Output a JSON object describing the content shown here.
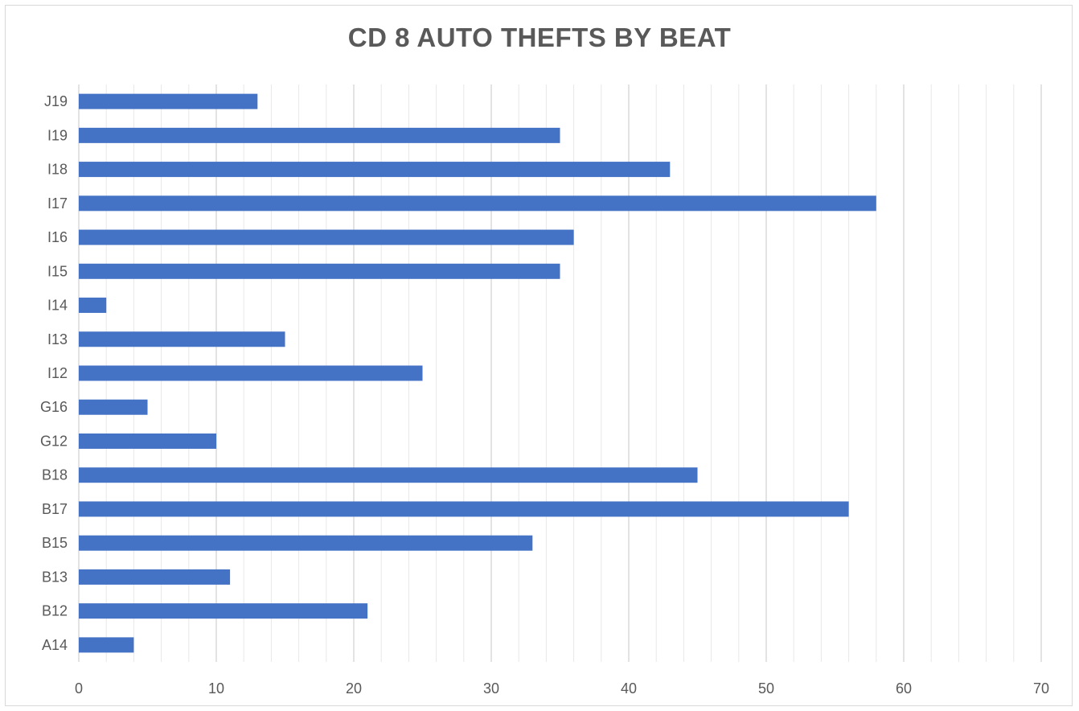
{
  "chart_data": {
    "type": "bar",
    "orientation": "horizontal",
    "title": "CD 8 AUTO THEFTS BY BEAT",
    "xlabel": "",
    "ylabel": "",
    "categories": [
      "J19",
      "I19",
      "I18",
      "I17",
      "I16",
      "I15",
      "I14",
      "I13",
      "I12",
      "G16",
      "G12",
      "B18",
      "B17",
      "B15",
      "B13",
      "B12",
      "A14"
    ],
    "values": [
      13,
      35,
      43,
      58,
      36,
      35,
      2,
      15,
      25,
      5,
      10,
      45,
      56,
      33,
      11,
      21,
      4
    ],
    "xlim": [
      0,
      70
    ],
    "x_ticks": [
      0,
      10,
      20,
      30,
      40,
      50,
      60,
      70
    ],
    "grid": "vertical",
    "legend": "none",
    "bar_color": "#4472c4",
    "grid_color": "#d9d9d9"
  }
}
